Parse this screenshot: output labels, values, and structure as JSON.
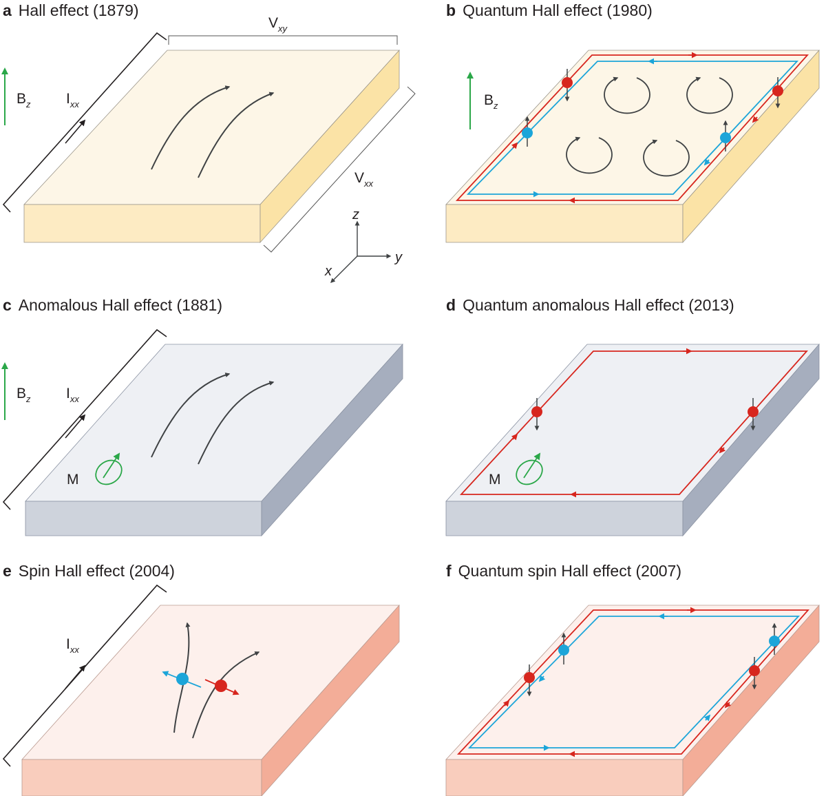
{
  "panels": {
    "a": {
      "letter": "a",
      "title": "Hall effect (1879)"
    },
    "b": {
      "letter": "b",
      "title": "Quantum Hall effect (1980)"
    },
    "c": {
      "letter": "c",
      "title": "Anomalous Hall effect (1881)"
    },
    "d": {
      "letter": "d",
      "title": "Quantum anomalous Hall effect (2013)"
    },
    "e": {
      "letter": "e",
      "title": "Spin Hall effect (2004)"
    },
    "f": {
      "letter": "f",
      "title": "Quantum spin Hall effect (2007)"
    }
  },
  "labels": {
    "B": "B",
    "z_sub": "z",
    "I": "I",
    "xx_sub": "xx",
    "V": "V",
    "xy_sub": "xy",
    "M": "M",
    "axis_x": "x",
    "axis_y": "y",
    "axis_z": "z"
  },
  "colors": {
    "yellow_top": "#fdf6e7",
    "yellow_side": "#fbe3a6",
    "yellow_front": "#fdebc3",
    "gray_top": "#eef0f4",
    "gray_side": "#a6aebe",
    "gray_front": "#ced3dc",
    "pink_top": "#fdf0ec",
    "pink_side": "#f3ad98",
    "pink_front": "#f9cdbd",
    "red": "#d7261e",
    "blue": "#1ca5d9",
    "green": "#2aa748",
    "dark": "#3f4244"
  }
}
